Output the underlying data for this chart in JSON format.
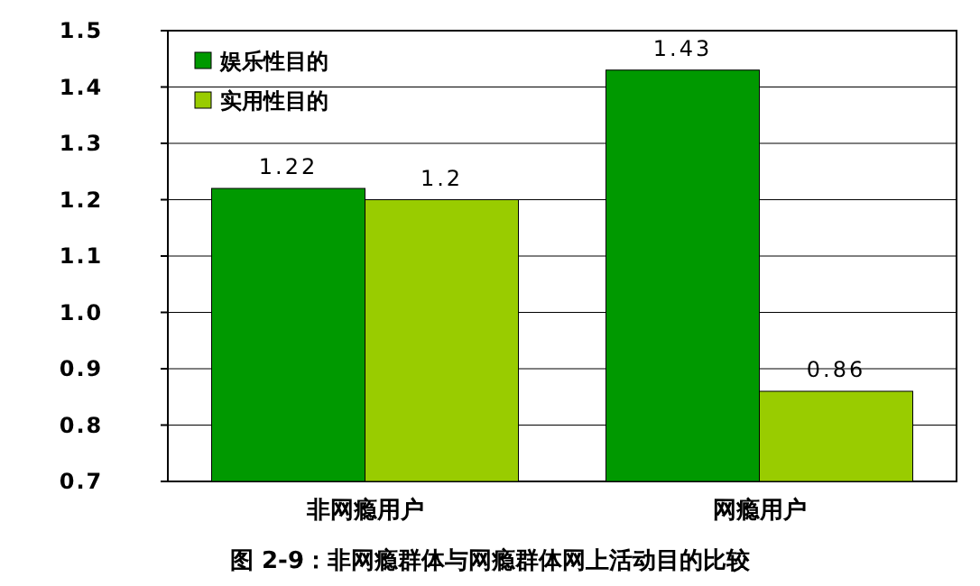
{
  "chart_data": {
    "type": "bar",
    "title": "图 2-9：非网瘾群体与网瘾群体网上活动目的比较",
    "categories": [
      "非网瘾用户",
      "网瘾用户"
    ],
    "series": [
      {
        "name": "娱乐性目的",
        "color": "#009900",
        "values": [
          1.22,
          1.43
        ]
      },
      {
        "name": "实用性目的",
        "color": "#99cc00",
        "values": [
          1.2,
          0.86
        ]
      }
    ],
    "ylim": [
      0.7,
      1.5
    ],
    "yticks": [
      0.7,
      0.8,
      0.9,
      {
        "value": 1.0,
        "label": "1.0"
      },
      1.1,
      1.2,
      1.3,
      1.4,
      1.5
    ],
    "grid": "y",
    "legend": "top left",
    "data_labels": true
  }
}
